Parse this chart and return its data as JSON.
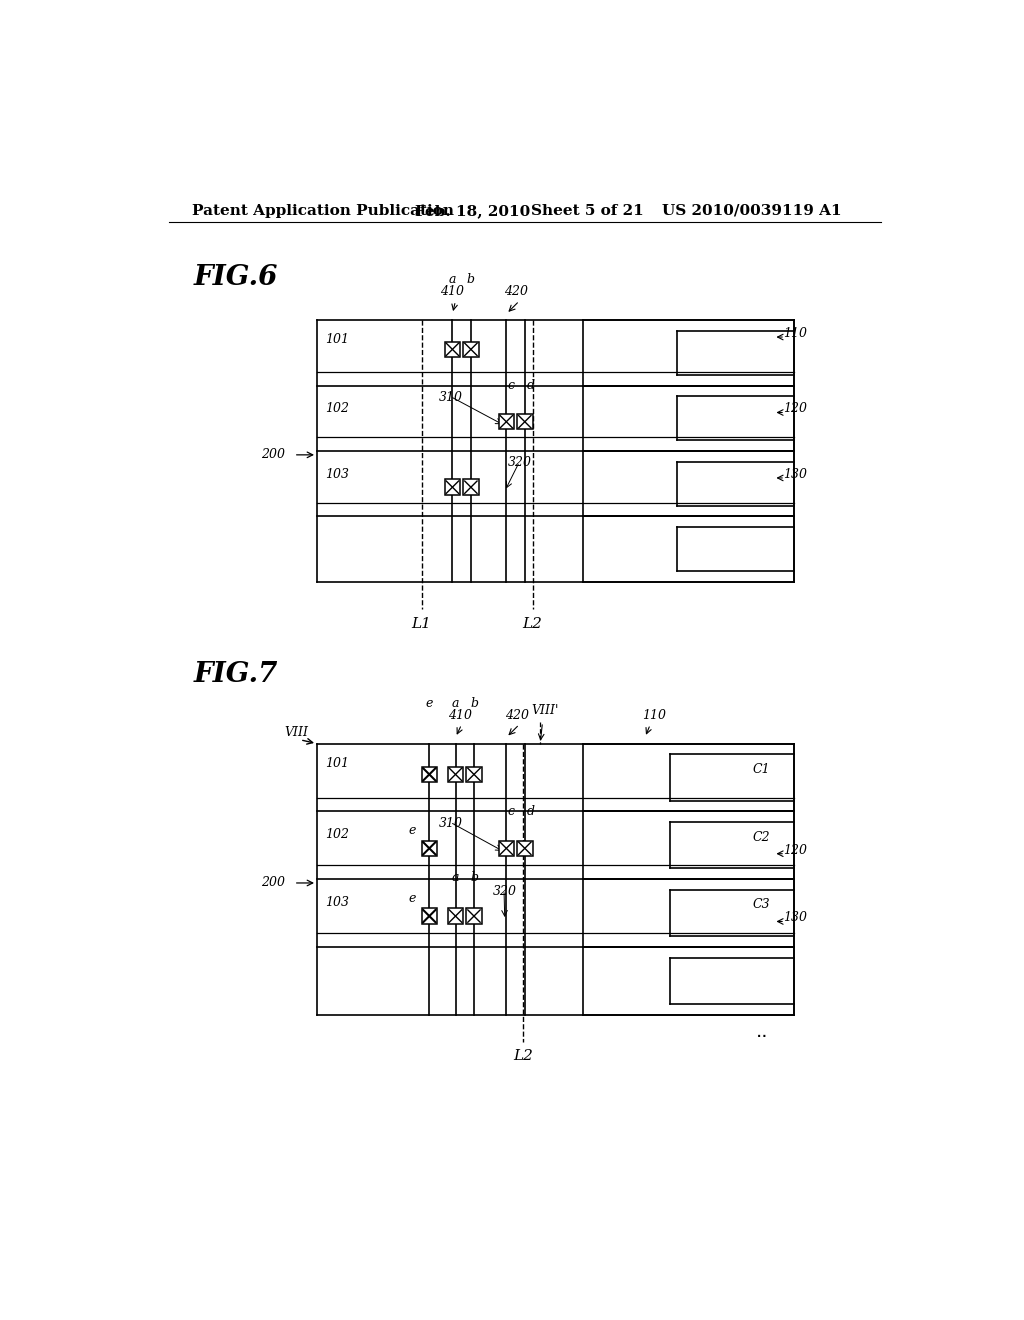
{
  "bg_color": "#ffffff",
  "header_text": "Patent Application Publication",
  "header_date": "Feb. 18, 2010",
  "header_sheet": "Sheet 5 of 21",
  "header_patent": "US 2010/0039119 A1",
  "fig6_label": "FIG.6",
  "fig7_label": "FIG.7"
}
